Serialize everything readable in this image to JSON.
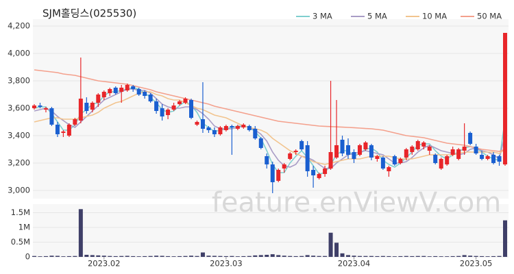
{
  "chart_data": {
    "type": "candlestick",
    "title": "SJM홀딩스(025530)",
    "watermark": "feature.enViewV.com",
    "up_color": "#e8262a",
    "down_color": "#1a5fd0",
    "categories": [
      null,
      null,
      null,
      null,
      null,
      null,
      null,
      null,
      null,
      null,
      null,
      null,
      "2023.02",
      null,
      null,
      null,
      null,
      null,
      null,
      null,
      null,
      null,
      null,
      null,
      null,
      null,
      null,
      null,
      null,
      null,
      null,
      null,
      null,
      "2023.03",
      null,
      null,
      null,
      null,
      null,
      null,
      null,
      null,
      null,
      null,
      null,
      null,
      null,
      null,
      null,
      null,
      null,
      null,
      null,
      null,
      null,
      "2023.04",
      null,
      null,
      null,
      null,
      null,
      null,
      null,
      null,
      null,
      null,
      null,
      null,
      null,
      null,
      null,
      null,
      null,
      null,
      null,
      null,
      "2023.05",
      null,
      null,
      null,
      null,
      null
    ],
    "ohlc": [
      [
        3600,
        3630,
        3590,
        3620
      ],
      [
        3620,
        3640,
        3600,
        3610
      ],
      [
        3590,
        3610,
        3570,
        3600
      ],
      [
        3600,
        3610,
        3470,
        3480
      ],
      [
        3480,
        3500,
        3390,
        3410
      ],
      [
        3420,
        3440,
        3390,
        3430
      ],
      [
        3400,
        3490,
        3390,
        3480
      ],
      [
        3480,
        3530,
        3470,
        3520
      ],
      [
        3510,
        3970,
        3490,
        3670
      ],
      [
        3640,
        3680,
        3560,
        3580
      ],
      [
        3590,
        3650,
        3570,
        3640
      ],
      [
        3640,
        3710,
        3610,
        3700
      ],
      [
        3680,
        3730,
        3660,
        3720
      ],
      [
        3710,
        3750,
        3690,
        3740
      ],
      [
        3750,
        3760,
        3700,
        3710
      ],
      [
        3720,
        3770,
        3640,
        3750
      ],
      [
        3730,
        3780,
        3720,
        3770
      ],
      [
        3760,
        3770,
        3720,
        3740
      ],
      [
        3740,
        3750,
        3690,
        3700
      ],
      [
        3720,
        3730,
        3670,
        3690
      ],
      [
        3700,
        3710,
        3640,
        3650
      ],
      [
        3650,
        3670,
        3560,
        3580
      ],
      [
        3600,
        3630,
        3510,
        3540
      ],
      [
        3550,
        3600,
        3520,
        3590
      ],
      [
        3590,
        3640,
        3580,
        3620
      ],
      [
        3630,
        3660,
        3620,
        3650
      ],
      [
        3640,
        3680,
        3630,
        3670
      ],
      [
        3660,
        3670,
        3520,
        3530
      ],
      [
        3480,
        3510,
        3470,
        3500
      ],
      [
        3520,
        3790,
        3420,
        3450
      ],
      [
        3460,
        3470,
        3420,
        3440
      ],
      [
        3440,
        3460,
        3390,
        3410
      ],
      [
        3410,
        3470,
        3400,
        3460
      ],
      [
        3440,
        3480,
        3430,
        3470
      ],
      [
        3470,
        3480,
        3260,
        3460
      ],
      [
        3450,
        3480,
        3440,
        3470
      ],
      [
        3460,
        3490,
        3450,
        3480
      ],
      [
        3470,
        3480,
        3430,
        3440
      ],
      [
        3450,
        3470,
        3370,
        3380
      ],
      [
        3380,
        3390,
        3300,
        3310
      ],
      [
        3250,
        3270,
        3160,
        3190
      ],
      [
        3190,
        3210,
        2980,
        3060
      ],
      [
        3070,
        3160,
        3060,
        3150
      ],
      [
        3160,
        3200,
        3130,
        3190
      ],
      [
        3230,
        3280,
        3220,
        3270
      ],
      [
        3280,
        3300,
        3260,
        3290
      ],
      [
        3360,
        3370,
        3290,
        3300
      ],
      [
        3330,
        3360,
        3100,
        3140
      ],
      [
        3150,
        3180,
        3020,
        3110
      ],
      [
        3090,
        3130,
        3080,
        3120
      ],
      [
        3120,
        3180,
        3100,
        3160
      ],
      [
        3160,
        3800,
        3150,
        3280
      ],
      [
        3240,
        3660,
        3230,
        3330
      ],
      [
        3370,
        3400,
        3250,
        3270
      ],
      [
        3330,
        3380,
        3230,
        3260
      ],
      [
        3280,
        3300,
        3200,
        3230
      ],
      [
        3260,
        3340,
        3250,
        3330
      ],
      [
        3300,
        3360,
        3290,
        3350
      ],
      [
        3330,
        3340,
        3220,
        3240
      ],
      [
        3230,
        3260,
        3210,
        3250
      ],
      [
        3240,
        3250,
        3150,
        3160
      ],
      [
        3140,
        3180,
        3100,
        3170
      ],
      [
        3250,
        3260,
        3180,
        3190
      ],
      [
        3200,
        3240,
        3190,
        3230
      ],
      [
        3240,
        3310,
        3220,
        3300
      ],
      [
        3280,
        3330,
        3260,
        3320
      ],
      [
        3300,
        3370,
        3290,
        3360
      ],
      [
        3320,
        3360,
        3300,
        3350
      ],
      [
        3290,
        3330,
        3260,
        3320
      ],
      [
        3260,
        3270,
        3190,
        3200
      ],
      [
        3160,
        3240,
        3150,
        3230
      ],
      [
        3190,
        3260,
        3180,
        3250
      ],
      [
        3260,
        3320,
        3250,
        3300
      ],
      [
        3230,
        3310,
        3220,
        3300
      ],
      [
        3290,
        3490,
        3260,
        3320
      ],
      [
        3420,
        3430,
        3330,
        3340
      ],
      [
        3320,
        3340,
        3260,
        3270
      ],
      [
        3260,
        3290,
        3220,
        3230
      ],
      [
        3230,
        3260,
        3220,
        3250
      ],
      [
        3260,
        3280,
        3190,
        3200
      ],
      [
        3250,
        3260,
        3180,
        3210
      ],
      [
        3190,
        4150,
        3180,
        4150
      ]
    ],
    "series": [
      {
        "name": "3 MA",
        "color": "#7fcfcf",
        "values": [
          3600,
          3610,
          3610,
          3560,
          3500,
          3440,
          3440,
          3480,
          3560,
          3590,
          3630,
          3640,
          3690,
          3720,
          3720,
          3730,
          3740,
          3750,
          3740,
          3710,
          3680,
          3640,
          3590,
          3570,
          3580,
          3620,
          3650,
          3620,
          3570,
          3490,
          3460,
          3430,
          3440,
          3450,
          3460,
          3470,
          3470,
          3460,
          3430,
          3380,
          3290,
          3190,
          3130,
          3130,
          3200,
          3250,
          3290,
          3240,
          3180,
          3120,
          3130,
          3190,
          3260,
          3290,
          3290,
          3250,
          3270,
          3300,
          3310,
          3280,
          3220,
          3190,
          3170,
          3200,
          3240,
          3280,
          3330,
          3340,
          3340,
          3290,
          3250,
          3230,
          3260,
          3280,
          3310,
          3320,
          3310,
          3280,
          3250,
          3230,
          3220,
          3520
        ]
      },
      {
        "name": "5 MA",
        "color": "#a99cc6",
        "values": [
          3580,
          3590,
          3600,
          3580,
          3540,
          3510,
          3480,
          3460,
          3500,
          3540,
          3580,
          3620,
          3660,
          3680,
          3700,
          3720,
          3740,
          3740,
          3730,
          3730,
          3710,
          3670,
          3630,
          3610,
          3600,
          3600,
          3610,
          3610,
          3590,
          3560,
          3520,
          3470,
          3450,
          3450,
          3450,
          3460,
          3470,
          3460,
          3440,
          3410,
          3360,
          3280,
          3220,
          3180,
          3170,
          3190,
          3250,
          3240,
          3220,
          3190,
          3160,
          3160,
          3200,
          3230,
          3260,
          3270,
          3280,
          3290,
          3280,
          3270,
          3260,
          3230,
          3200,
          3200,
          3210,
          3240,
          3280,
          3310,
          3330,
          3310,
          3290,
          3280,
          3270,
          3260,
          3270,
          3300,
          3310,
          3290,
          3280,
          3260,
          3230,
          3410
        ]
      },
      {
        "name": "10 MA",
        "color": "#f2c48e",
        "values": [
          3500,
          3510,
          3520,
          3530,
          3530,
          3520,
          3520,
          3520,
          3530,
          3540,
          3550,
          3570,
          3600,
          3620,
          3640,
          3650,
          3670,
          3690,
          3710,
          3720,
          3720,
          3700,
          3690,
          3670,
          3660,
          3660,
          3640,
          3620,
          3600,
          3590,
          3570,
          3550,
          3540,
          3530,
          3510,
          3490,
          3470,
          3460,
          3450,
          3440,
          3420,
          3380,
          3350,
          3320,
          3290,
          3270,
          3250,
          3230,
          3210,
          3200,
          3190,
          3200,
          3210,
          3220,
          3230,
          3230,
          3230,
          3240,
          3250,
          3250,
          3250,
          3250,
          3240,
          3230,
          3230,
          3230,
          3240,
          3250,
          3260,
          3260,
          3260,
          3260,
          3260,
          3270,
          3280,
          3280,
          3280,
          3280,
          3280,
          3280,
          3270,
          3300
        ]
      },
      {
        "name": "50 MA",
        "color": "#f4a08c",
        "values": [
          3880,
          3875,
          3870,
          3865,
          3860,
          3850,
          3845,
          3840,
          3830,
          3820,
          3810,
          3800,
          3795,
          3790,
          3785,
          3780,
          3775,
          3765,
          3755,
          3745,
          3735,
          3720,
          3710,
          3700,
          3690,
          3680,
          3670,
          3660,
          3650,
          3640,
          3630,
          3615,
          3605,
          3595,
          3585,
          3575,
          3565,
          3555,
          3545,
          3535,
          3525,
          3515,
          3505,
          3500,
          3495,
          3490,
          3485,
          3480,
          3475,
          3470,
          3468,
          3466,
          3464,
          3462,
          3460,
          3458,
          3455,
          3452,
          3450,
          3445,
          3440,
          3430,
          3420,
          3410,
          3400,
          3395,
          3390,
          3385,
          3375,
          3365,
          3355,
          3345,
          3340,
          3335,
          3330,
          3320,
          3310,
          3300,
          3295,
          3290,
          3285,
          3300
        ]
      }
    ],
    "ylim": [
      2940,
      4250
    ],
    "yticks": [
      {
        "value": 3000,
        "label": "3,000"
      },
      {
        "value": 3200,
        "label": "3,200"
      },
      {
        "value": 3400,
        "label": "3,400"
      },
      {
        "value": 3600,
        "label": "3,600"
      },
      {
        "value": 3800,
        "label": "3,800"
      },
      {
        "value": 4000,
        "label": "4,000"
      },
      {
        "value": 4200,
        "label": "4,200"
      }
    ],
    "grid": true,
    "volume": {
      "color": "#3f3f68",
      "values": [
        30000,
        20000,
        25000,
        40000,
        35000,
        20000,
        25000,
        30000,
        1620000,
        70000,
        60000,
        50000,
        40000,
        30000,
        25000,
        30000,
        35000,
        25000,
        20000,
        25000,
        30000,
        40000,
        35000,
        25000,
        20000,
        25000,
        30000,
        40000,
        30000,
        150000,
        40000,
        35000,
        30000,
        25000,
        30000,
        20000,
        25000,
        30000,
        50000,
        60000,
        70000,
        90000,
        60000,
        40000,
        30000,
        25000,
        30000,
        60000,
        40000,
        30000,
        30000,
        820000,
        480000,
        120000,
        60000,
        40000,
        30000,
        30000,
        30000,
        25000,
        30000,
        25000,
        20000,
        25000,
        30000,
        25000,
        30000,
        30000,
        20000,
        25000,
        20000,
        20000,
        25000,
        30000,
        60000,
        40000,
        30000,
        25000,
        20000,
        25000,
        30000,
        1240000
      ],
      "ylim": [
        0,
        1790000
      ],
      "yticks": [
        0,
        {
          "value": 500000,
          "label": "0.5M"
        },
        {
          "value": 1000000,
          "label": "1M"
        },
        {
          "value": 1500000,
          "label": "1.5M"
        }
      ]
    }
  }
}
